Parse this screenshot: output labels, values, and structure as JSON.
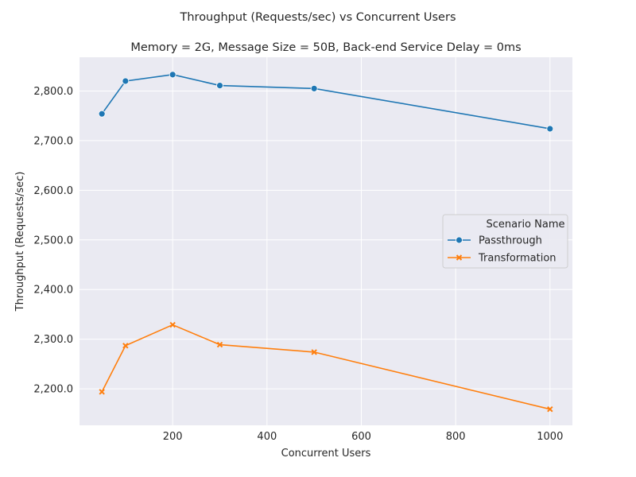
{
  "chart_data": {
    "type": "line",
    "suptitle": "Throughput (Requests/sec) vs Concurrent Users",
    "title": "Memory = 2G, Message Size = 50B, Back-end Service Delay = 0ms",
    "xlabel": "Concurrent Users",
    "ylabel": "Throughput (Requests/sec)",
    "xlim": [
      2.5,
      1047.5
    ],
    "ylim": [
      2126.5,
      2868.0
    ],
    "xticks": [
      200,
      400,
      600,
      800,
      1000
    ],
    "xtick_labels": [
      "200",
      "400",
      "600",
      "800",
      "1000"
    ],
    "yticks": [
      2200,
      2300,
      2400,
      2500,
      2600,
      2700,
      2800
    ],
    "ytick_labels": [
      "2,200.0",
      "2,300.0",
      "2,400.0",
      "2,500.0",
      "2,600.0",
      "2,700.0",
      "2,800.0"
    ],
    "grid": true,
    "legend": {
      "title": "Scenario Name",
      "placement": "center-right"
    },
    "x": [
      50,
      100,
      200,
      300,
      500,
      1000
    ],
    "series": [
      {
        "name": "Passthrough",
        "color": "#1f77b4",
        "marker": "circle",
        "values": [
          2754,
          2820,
          2833,
          2811,
          2805,
          2724
        ]
      },
      {
        "name": "Transformation",
        "color": "#ff7f0e",
        "marker": "x",
        "values": [
          2194,
          2287,
          2329,
          2289,
          2274,
          2159
        ]
      }
    ]
  }
}
